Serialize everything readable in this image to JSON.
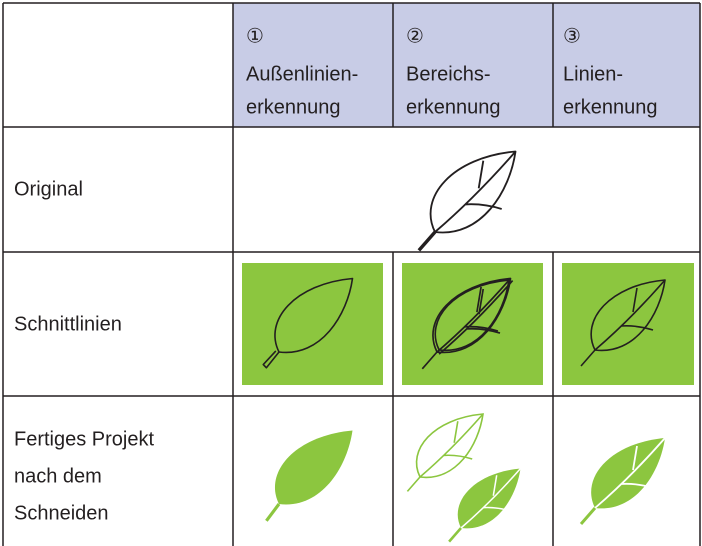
{
  "table": {
    "header": [
      {
        "number": "①",
        "lines": [
          "Außenlinien-",
          "erkennung"
        ]
      },
      {
        "number": "②",
        "lines": [
          "Bereichs-",
          "erkennung"
        ]
      },
      {
        "number": "③",
        "lines": [
          "Linien-",
          "erkennung"
        ]
      }
    ],
    "rows": [
      {
        "label": [
          "Original"
        ]
      },
      {
        "label": [
          "Schnittlinien"
        ]
      },
      {
        "label": [
          "Fertiges Projekt",
          "nach dem",
          "Schneiden"
        ]
      }
    ]
  }
}
